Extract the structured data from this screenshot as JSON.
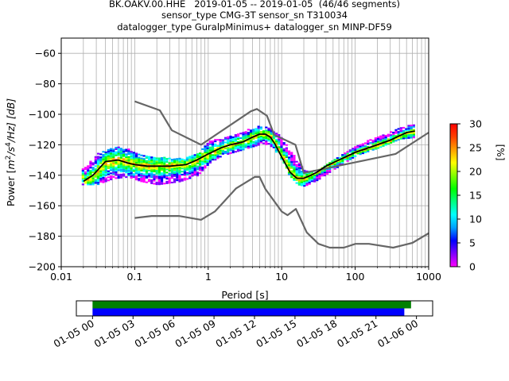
{
  "title_lines": [
    "BK.OAKV.00.HHE   2019-01-05 -- 2019-01-05  (46/46 segments)",
    "sensor_type CMG-3T sensor_sn T310034",
    "datalogger_type GuralpMinimus+ datalogger_sn MINP-DF59"
  ],
  "chart_data": {
    "type": "heatmap",
    "xlabel": "Period [s]",
    "ylabel": "Power [m²/s⁴/Hz] [dB]",
    "ylabel_parts": {
      "pre": "Power [",
      "m": "m",
      "exp2": "2",
      "s": "/s",
      "exp4": "4",
      "post": "/Hz] [dB]"
    },
    "x_scale": "log",
    "xlim": [
      0.01,
      1000
    ],
    "ylim": [
      -200,
      -50
    ],
    "x_ticks": [
      {
        "v": 0.01,
        "label": "0.01"
      },
      {
        "v": 0.1,
        "label": "0.1"
      },
      {
        "v": 1,
        "label": "1"
      },
      {
        "v": 10,
        "label": "10"
      },
      {
        "v": 100,
        "label": "100"
      },
      {
        "v": 1000,
        "label": "1000"
      }
    ],
    "y_ticks": [
      {
        "v": -60,
        "label": "−60"
      },
      {
        "v": -80,
        "label": "−80"
      },
      {
        "v": -100,
        "label": "−100"
      },
      {
        "v": -120,
        "label": "−120"
      },
      {
        "v": -140,
        "label": "−140"
      },
      {
        "v": -160,
        "label": "−160"
      },
      {
        "v": -180,
        "label": "−180"
      },
      {
        "v": -200,
        "label": "−200"
      }
    ],
    "grid": true,
    "colorbar": {
      "label": "[%]",
      "range": [
        0,
        30
      ],
      "ticks": [
        {
          "v": 0,
          "label": "0"
        },
        {
          "v": 5,
          "label": "5"
        },
        {
          "v": 10,
          "label": "10"
        },
        {
          "v": 15,
          "label": "15"
        },
        {
          "v": 20,
          "label": "20"
        },
        {
          "v": 25,
          "label": "25"
        },
        {
          "v": 30,
          "label": "30"
        }
      ],
      "colors": [
        "#ffffff",
        "#ff00ff",
        "#8000ff",
        "#0000ff",
        "#00a0ff",
        "#00ffff",
        "#00ff80",
        "#00ff00",
        "#80ff00",
        "#ffff00",
        "#ffa000",
        "#ff4000",
        "#ff0000"
      ]
    },
    "mean_psd": {
      "period": [
        0.02,
        0.027,
        0.04,
        0.06,
        0.08,
        0.1,
        0.15,
        0.3,
        0.5,
        0.7,
        1,
        1.5,
        2,
        3,
        4,
        5,
        6,
        7,
        8,
        10,
        13,
        16,
        20,
        25,
        30,
        40,
        60,
        100,
        200,
        300,
        500,
        650
      ],
      "power": [
        -144,
        -140,
        -131,
        -130,
        -132,
        -133,
        -134,
        -134,
        -133,
        -130,
        -126,
        -122,
        -120,
        -118,
        -115,
        -113,
        -113,
        -115,
        -119,
        -128,
        -138,
        -142,
        -142,
        -140,
        -138,
        -134,
        -130,
        -125,
        -120,
        -117,
        -112,
        -111
      ]
    },
    "nhnm": {
      "period": [
        0.1,
        0.22,
        0.32,
        0.8,
        3.8,
        4.6,
        6.3,
        7.9,
        15.4,
        20,
        354.8,
        1000
      ],
      "power": [
        -91.5,
        -97.4,
        -110.5,
        -120,
        -98,
        -96.5,
        -101,
        -113.5,
        -120,
        -138.5,
        -126,
        -112
      ]
    },
    "nlnm": {
      "period": [
        0.1,
        0.17,
        0.4,
        0.8,
        1.24,
        2.4,
        4.3,
        5,
        6,
        10,
        12,
        15.6,
        21.9,
        31.6,
        45,
        70,
        101,
        154,
        328,
        600,
        1000
      ],
      "power": [
        -168,
        -166.7,
        -166.7,
        -169.2,
        -163.7,
        -148.6,
        -141.1,
        -141.1,
        -149,
        -163.8,
        -166.2,
        -162.1,
        -177.5,
        -185,
        -187.5,
        -187.5,
        -185,
        -185,
        -187.5,
        -184.4,
        -178
      ]
    },
    "density_bands": [
      {
        "period": [
          0.019,
          0.03,
          0.05,
          0.08,
          0.12,
          0.2,
          0.4,
          0.7,
          1,
          1.5,
          2.5,
          4,
          5.5,
          7,
          9,
          12,
          16,
          20,
          30,
          50,
          100,
          200,
          400,
          650
        ],
        "upper": [
          -136,
          -126,
          -121,
          -123,
          -127,
          -128,
          -129,
          -126,
          -117,
          -116,
          -113,
          -108,
          -108,
          -110,
          -113,
          -122,
          -130,
          -137,
          -137,
          -129,
          -121,
          -114,
          -109,
          -106
        ],
        "lower": [
          -146,
          -146,
          -142,
          -141,
          -144,
          -146,
          -144,
          -140,
          -132,
          -127,
          -124,
          -121,
          -119,
          -121,
          -127,
          -139,
          -146,
          -147,
          -143,
          -136,
          -127,
          -122,
          -116,
          -115
        ]
      }
    ],
    "time_axis": {
      "tick_labels": [
        "01-05 00",
        "01-05 03",
        "01-05 06",
        "01-05 09",
        "01-05 12",
        "01-05 15",
        "01-05 18",
        "01-05 21",
        "01-06 00"
      ],
      "range_hours": [
        -1.2,
        25.2
      ],
      "bars": [
        {
          "name": "data",
          "color": "#008000",
          "start_h": 0,
          "end_h": 23.6
        },
        {
          "name": "psd",
          "color": "#0000ff",
          "start_h": 0,
          "end_h": 23.1
        }
      ]
    }
  }
}
